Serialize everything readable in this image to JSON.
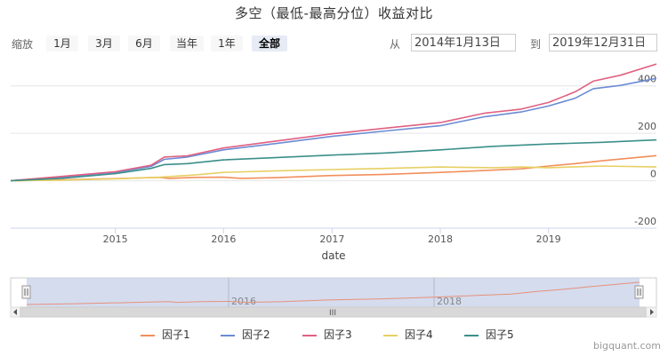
{
  "title": "多空（最低-最高分位）收益对比",
  "range_selector": {
    "zoom_label": "缩放",
    "buttons": [
      "1月",
      "3月",
      "6月",
      "当年",
      "1年",
      "全部"
    ],
    "active": "全部",
    "from_label": "从",
    "from_value": "2014年1月13日",
    "to_label": "到",
    "to_value": "2019年12月31日"
  },
  "navigator": {
    "year_labels": [
      "2016",
      "2018"
    ],
    "scrollbar_grip": "III"
  },
  "credit": "bigquant.com",
  "colors": {
    "因子1": "#f28f5b",
    "因子2": "#6c8bd5",
    "因子3": "#e06080",
    "因子4": "#e8cf63",
    "因子5": "#3a8f8a"
  },
  "chart_data": {
    "type": "line",
    "title": "多空（最低-最高分位）收益对比",
    "xlabel": "date",
    "ylabel": "",
    "x_range": [
      "2014-01-13",
      "2019-12-31"
    ],
    "ylim": [
      -200,
      500
    ],
    "yticks": [
      -200,
      0,
      200,
      400
    ],
    "xticks": [
      "2015",
      "2016",
      "2017",
      "2018",
      "2019"
    ],
    "grid": true,
    "legend_position": "bottom",
    "series": [
      {
        "name": "因子1",
        "color": "#f28f5b",
        "points": [
          [
            "2014-01-13",
            0
          ],
          [
            "2014-07-01",
            4
          ],
          [
            "2015-01-01",
            9
          ],
          [
            "2015-06-01",
            14
          ],
          [
            "2015-07-01",
            10
          ],
          [
            "2015-10-01",
            14
          ],
          [
            "2016-01-01",
            15
          ],
          [
            "2016-03-01",
            10
          ],
          [
            "2016-07-01",
            13
          ],
          [
            "2017-01-01",
            22
          ],
          [
            "2017-07-01",
            27
          ],
          [
            "2018-01-01",
            35
          ],
          [
            "2018-07-01",
            45
          ],
          [
            "2018-10-01",
            50
          ],
          [
            "2019-01-01",
            62
          ],
          [
            "2019-04-01",
            72
          ],
          [
            "2019-07-01",
            84
          ],
          [
            "2019-10-01",
            95
          ],
          [
            "2019-12-31",
            106
          ]
        ]
      },
      {
        "name": "因子2",
        "color": "#6c8bd5",
        "points": [
          [
            "2014-01-13",
            0
          ],
          [
            "2014-07-01",
            15
          ],
          [
            "2015-01-01",
            35
          ],
          [
            "2015-05-01",
            60
          ],
          [
            "2015-06-15",
            90
          ],
          [
            "2015-09-01",
            100
          ],
          [
            "2016-01-01",
            130
          ],
          [
            "2016-07-01",
            158
          ],
          [
            "2017-01-01",
            187
          ],
          [
            "2017-07-01",
            210
          ],
          [
            "2018-01-01",
            232
          ],
          [
            "2018-06-01",
            270
          ],
          [
            "2018-10-01",
            290
          ],
          [
            "2019-01-01",
            315
          ],
          [
            "2019-04-01",
            348
          ],
          [
            "2019-06-01",
            388
          ],
          [
            "2019-09-01",
            402
          ],
          [
            "2019-12-31",
            432
          ]
        ]
      },
      {
        "name": "因子3",
        "color": "#e06080",
        "points": [
          [
            "2014-01-13",
            0
          ],
          [
            "2014-07-01",
            18
          ],
          [
            "2015-01-01",
            38
          ],
          [
            "2015-05-01",
            65
          ],
          [
            "2015-06-15",
            100
          ],
          [
            "2015-09-01",
            105
          ],
          [
            "2016-01-01",
            138
          ],
          [
            "2016-07-01",
            168
          ],
          [
            "2017-01-01",
            198
          ],
          [
            "2017-07-01",
            222
          ],
          [
            "2018-01-01",
            245
          ],
          [
            "2018-06-01",
            285
          ],
          [
            "2018-10-01",
            302
          ],
          [
            "2019-01-01",
            330
          ],
          [
            "2019-04-01",
            375
          ],
          [
            "2019-06-01",
            420
          ],
          [
            "2019-09-01",
            445
          ],
          [
            "2019-12-31",
            492
          ]
        ]
      },
      {
        "name": "因子4",
        "color": "#e8cf63",
        "points": [
          [
            "2014-01-13",
            0
          ],
          [
            "2014-07-01",
            2
          ],
          [
            "2015-01-01",
            8
          ],
          [
            "2015-06-01",
            15
          ],
          [
            "2015-10-01",
            25
          ],
          [
            "2016-01-01",
            35
          ],
          [
            "2016-07-01",
            42
          ],
          [
            "2017-01-01",
            47
          ],
          [
            "2017-07-01",
            52
          ],
          [
            "2018-01-01",
            58
          ],
          [
            "2018-07-01",
            55
          ],
          [
            "2018-10-01",
            58
          ],
          [
            "2019-01-01",
            55
          ],
          [
            "2019-07-01",
            62
          ],
          [
            "2019-12-31",
            58
          ]
        ]
      },
      {
        "name": "因子5",
        "color": "#3a8f8a",
        "points": [
          [
            "2014-01-13",
            0
          ],
          [
            "2014-07-01",
            10
          ],
          [
            "2015-01-01",
            30
          ],
          [
            "2015-05-01",
            52
          ],
          [
            "2015-06-15",
            68
          ],
          [
            "2015-09-01",
            72
          ],
          [
            "2016-01-01",
            88
          ],
          [
            "2016-07-01",
            98
          ],
          [
            "2017-01-01",
            108
          ],
          [
            "2017-07-01",
            117
          ],
          [
            "2018-01-01",
            130
          ],
          [
            "2018-07-01",
            145
          ],
          [
            "2019-01-01",
            155
          ],
          [
            "2019-07-01",
            162
          ],
          [
            "2019-12-31",
            172
          ]
        ]
      }
    ]
  }
}
